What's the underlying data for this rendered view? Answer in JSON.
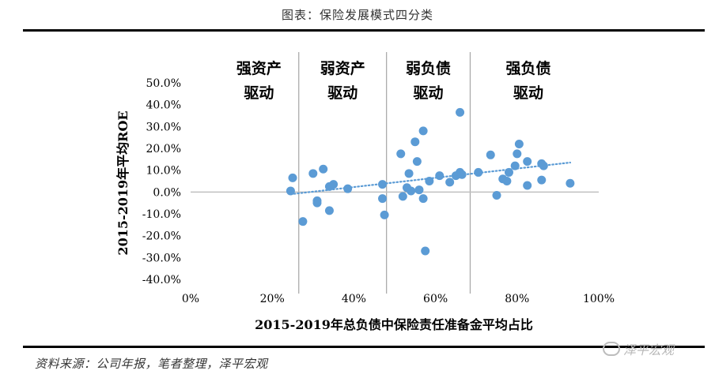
{
  "title": "图表：保险发展模式四分类",
  "source": "资料来源：公司年报，笔者整理，泽平宏观",
  "watermark": {
    "text": "泽平宏观",
    "icon": "wechat-icon"
  },
  "colors": {
    "points": "#5B9BD5",
    "trendline": "#5B9BD5",
    "dividers": "#a6a6a6",
    "zero_line": "#bfbfbf"
  },
  "chart_data": {
    "type": "scatter",
    "xlabel": "2015-2019年总负债中保险责任准备金平均占比",
    "ylabel": "2015-2019年平均ROE",
    "xlim": [
      0,
      100
    ],
    "ylim": [
      -40,
      50
    ],
    "x_ticks": [
      "0%",
      "20%",
      "40%",
      "60%",
      "80%",
      "100%"
    ],
    "y_ticks": [
      "50.0%",
      "40.0%",
      "30.0%",
      "20.0%",
      "10.0%",
      "0.0%",
      "-10.0%",
      "-20.0%",
      "-30.0%",
      "-40.0%"
    ],
    "grid": false,
    "trendline": {
      "type": "linear",
      "style": "dotted",
      "x": [
        24.5,
        93
      ],
      "y": [
        -1.0,
        13.5
      ]
    },
    "dividers_x": [
      26.5,
      48,
      68.5
    ],
    "quadrants": [
      {
        "line1": "强资产",
        "line2": "驱动"
      },
      {
        "line1": "弱资产",
        "line2": "驱动"
      },
      {
        "line1": "弱负债",
        "line2": "驱动"
      },
      {
        "line1": "强负债",
        "line2": "驱动"
      }
    ],
    "points": [
      {
        "x": 24.5,
        "y": 0.5
      },
      {
        "x": 25.0,
        "y": 6.5
      },
      {
        "x": 27.5,
        "y": -13.5
      },
      {
        "x": 30.0,
        "y": 8.5
      },
      {
        "x": 31.0,
        "y": -4.0
      },
      {
        "x": 31.0,
        "y": -5.0
      },
      {
        "x": 32.5,
        "y": 10.5
      },
      {
        "x": 34.0,
        "y": 2.5
      },
      {
        "x": 34.0,
        "y": -8.5
      },
      {
        "x": 35.0,
        "y": 3.5
      },
      {
        "x": 38.5,
        "y": 1.5
      },
      {
        "x": 47.0,
        "y": 3.5
      },
      {
        "x": 47.0,
        "y": -3.0
      },
      {
        "x": 47.5,
        "y": -10.5
      },
      {
        "x": 51.5,
        "y": 17.5
      },
      {
        "x": 52.0,
        "y": -2.0
      },
      {
        "x": 53.0,
        "y": 2.0
      },
      {
        "x": 53.5,
        "y": 8.5
      },
      {
        "x": 54.0,
        "y": 0.5
      },
      {
        "x": 55.0,
        "y": 23.0
      },
      {
        "x": 55.5,
        "y": 14.0
      },
      {
        "x": 56.0,
        "y": 1.0
      },
      {
        "x": 57.0,
        "y": -3.0
      },
      {
        "x": 57.0,
        "y": 28.0
      },
      {
        "x": 57.5,
        "y": -27.0
      },
      {
        "x": 58.5,
        "y": 5.0
      },
      {
        "x": 61.0,
        "y": 7.5
      },
      {
        "x": 63.5,
        "y": 4.5
      },
      {
        "x": 65.0,
        "y": 7.5
      },
      {
        "x": 66.0,
        "y": 9.0
      },
      {
        "x": 66.0,
        "y": 36.5
      },
      {
        "x": 66.5,
        "y": 8.0
      },
      {
        "x": 70.5,
        "y": 9.0
      },
      {
        "x": 73.5,
        "y": 17.0
      },
      {
        "x": 75.0,
        "y": -1.5
      },
      {
        "x": 76.5,
        "y": 6.0
      },
      {
        "x": 77.5,
        "y": 5.0
      },
      {
        "x": 78.0,
        "y": 9.0
      },
      {
        "x": 79.5,
        "y": 12.0
      },
      {
        "x": 80.0,
        "y": 17.5
      },
      {
        "x": 80.5,
        "y": 22.0
      },
      {
        "x": 82.5,
        "y": 3.0
      },
      {
        "x": 82.5,
        "y": 14.0
      },
      {
        "x": 86.0,
        "y": 13.0
      },
      {
        "x": 86.0,
        "y": 5.5
      },
      {
        "x": 86.5,
        "y": 12.0
      },
      {
        "x": 93.0,
        "y": 4.0
      }
    ]
  }
}
